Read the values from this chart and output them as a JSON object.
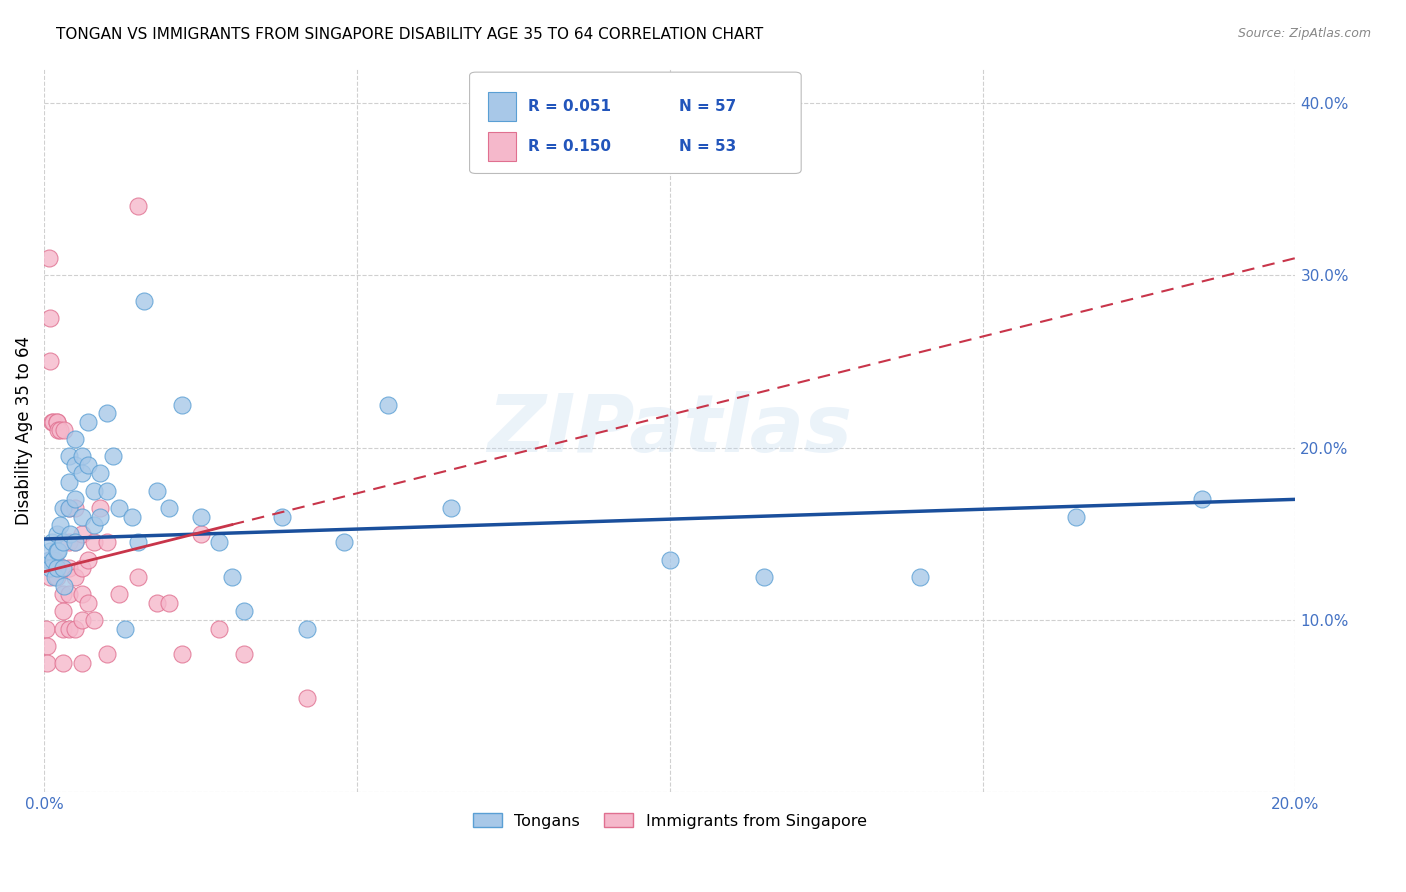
{
  "title": "TONGAN VS IMMIGRANTS FROM SINGAPORE DISABILITY AGE 35 TO 64 CORRELATION CHART",
  "source": "Source: ZipAtlas.com",
  "ylabel": "Disability Age 35 to 64",
  "xlim": [
    0.0,
    0.2
  ],
  "ylim": [
    0.0,
    0.42
  ],
  "tongans_fill": "#a8c8e8",
  "tongans_edge": "#5a9fd4",
  "singapore_fill": "#f5b8cb",
  "singapore_edge": "#e07090",
  "tongans_line_color": "#1a4f9c",
  "singapore_line_color": "#c8354a",
  "R_tongans": 0.051,
  "N_tongans": 57,
  "R_singapore": 0.15,
  "N_singapore": 53,
  "watermark": "ZIPatlas",
  "legend_label_tongans": "Tongans",
  "legend_label_singapore": "Immigrants from Singapore",
  "tongans_x": [
    0.0008,
    0.001,
    0.001,
    0.0012,
    0.0015,
    0.0018,
    0.002,
    0.002,
    0.002,
    0.0022,
    0.0025,
    0.003,
    0.003,
    0.003,
    0.0032,
    0.004,
    0.004,
    0.004,
    0.0042,
    0.005,
    0.005,
    0.005,
    0.005,
    0.006,
    0.006,
    0.006,
    0.007,
    0.007,
    0.008,
    0.008,
    0.009,
    0.009,
    0.01,
    0.01,
    0.011,
    0.012,
    0.013,
    0.014,
    0.015,
    0.016,
    0.018,
    0.02,
    0.022,
    0.025,
    0.028,
    0.03,
    0.032,
    0.038,
    0.042,
    0.048,
    0.055,
    0.065,
    0.1,
    0.115,
    0.14,
    0.165,
    0.185
  ],
  "tongans_y": [
    0.135,
    0.14,
    0.13,
    0.145,
    0.135,
    0.125,
    0.15,
    0.14,
    0.13,
    0.14,
    0.155,
    0.165,
    0.145,
    0.13,
    0.12,
    0.195,
    0.18,
    0.165,
    0.15,
    0.205,
    0.19,
    0.17,
    0.145,
    0.195,
    0.185,
    0.16,
    0.215,
    0.19,
    0.175,
    0.155,
    0.185,
    0.16,
    0.22,
    0.175,
    0.195,
    0.165,
    0.095,
    0.16,
    0.145,
    0.285,
    0.175,
    0.165,
    0.225,
    0.16,
    0.145,
    0.125,
    0.105,
    0.16,
    0.095,
    0.145,
    0.225,
    0.165,
    0.135,
    0.125,
    0.125,
    0.16,
    0.17
  ],
  "singapore_x": [
    0.0003,
    0.0005,
    0.0005,
    0.0008,
    0.001,
    0.001,
    0.001,
    0.001,
    0.0012,
    0.0015,
    0.0018,
    0.002,
    0.002,
    0.002,
    0.0022,
    0.0025,
    0.003,
    0.003,
    0.003,
    0.003,
    0.003,
    0.0032,
    0.004,
    0.004,
    0.004,
    0.004,
    0.004,
    0.005,
    0.005,
    0.005,
    0.005,
    0.006,
    0.006,
    0.006,
    0.006,
    0.006,
    0.007,
    0.007,
    0.008,
    0.008,
    0.009,
    0.01,
    0.01,
    0.012,
    0.015,
    0.015,
    0.018,
    0.02,
    0.022,
    0.025,
    0.028,
    0.032,
    0.042
  ],
  "singapore_y": [
    0.095,
    0.085,
    0.075,
    0.31,
    0.275,
    0.25,
    0.135,
    0.125,
    0.215,
    0.215,
    0.135,
    0.215,
    0.215,
    0.125,
    0.21,
    0.21,
    0.13,
    0.115,
    0.105,
    0.095,
    0.075,
    0.21,
    0.165,
    0.145,
    0.13,
    0.115,
    0.095,
    0.165,
    0.145,
    0.125,
    0.095,
    0.15,
    0.13,
    0.115,
    0.1,
    0.075,
    0.135,
    0.11,
    0.145,
    0.1,
    0.165,
    0.145,
    0.08,
    0.115,
    0.34,
    0.125,
    0.11,
    0.11,
    0.08,
    0.15,
    0.095,
    0.08,
    0.055
  ],
  "trend_tongans_x0": 0.0,
  "trend_tongans_y0": 0.147,
  "trend_tongans_x1": 0.2,
  "trend_tongans_y1": 0.17,
  "trend_singapore_x0": 0.0,
  "trend_singapore_y0": 0.128,
  "trend_singapore_x1": 0.2,
  "trend_singapore_y1": 0.31
}
